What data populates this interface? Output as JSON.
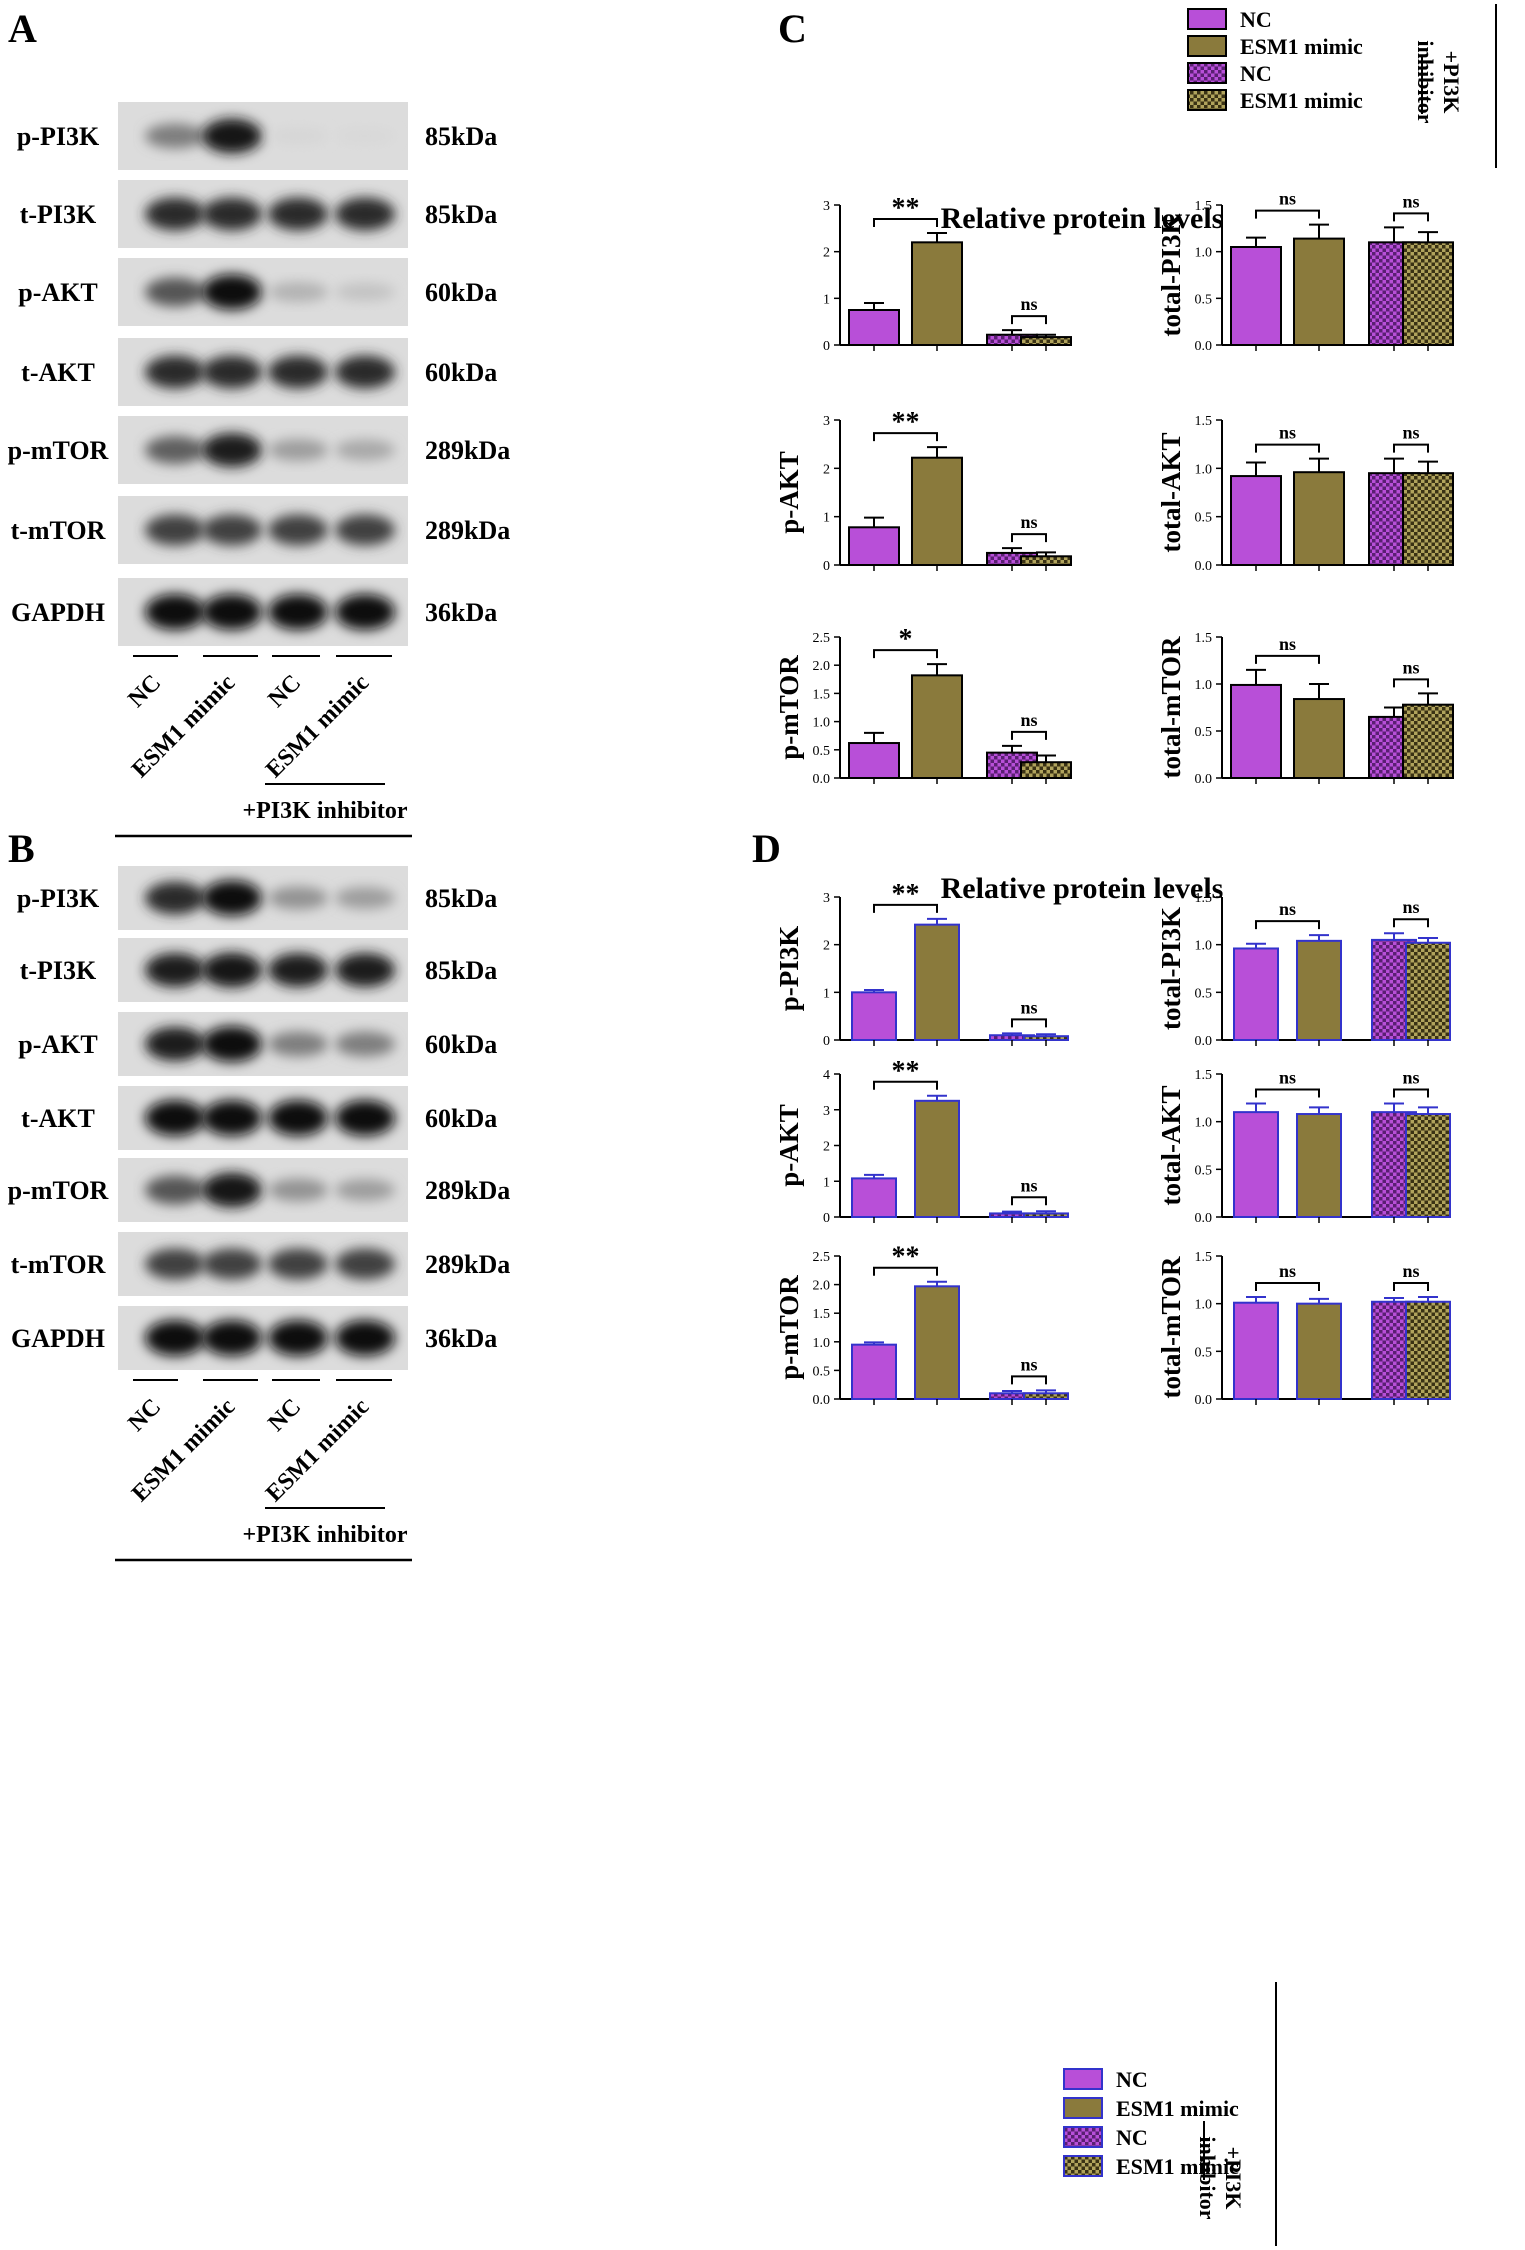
{
  "panels": {
    "A": "A",
    "B": "B",
    "C": "C",
    "D": "D"
  },
  "blot_A": {
    "rows": [
      {
        "label": "p-PI3K",
        "kda": "85kDa"
      },
      {
        "label": "t-PI3K",
        "kda": "85kDa"
      },
      {
        "label": "p-AKT",
        "kda": "60kDa"
      },
      {
        "label": "t-AKT",
        "kda": "60kDa"
      },
      {
        "label": "p-mTOR",
        "kda": "289kDa"
      },
      {
        "label": "t-mTOR",
        "kda": "289kDa"
      },
      {
        "label": "GAPDH",
        "kda": "36kDa"
      }
    ],
    "lanes": [
      "NC",
      "ESM1 mimic",
      "NC",
      "ESM1 mimic"
    ],
    "inhibitor_label": "+PI3K inhibitor",
    "band_intensity": [
      [
        0.45,
        0.95,
        0.03,
        0.02
      ],
      [
        0.85,
        0.85,
        0.85,
        0.85
      ],
      [
        0.65,
        0.98,
        0.2,
        0.12
      ],
      [
        0.85,
        0.85,
        0.85,
        0.85
      ],
      [
        0.6,
        0.9,
        0.3,
        0.25
      ],
      [
        0.75,
        0.75,
        0.75,
        0.75
      ],
      [
        1.0,
        1.0,
        1.0,
        1.0
      ]
    ]
  },
  "blot_B": {
    "rows": [
      {
        "label": "p-PI3K",
        "kda": "85kDa"
      },
      {
        "label": "t-PI3K",
        "kda": "85kDa"
      },
      {
        "label": "p-AKT",
        "kda": "60kDa"
      },
      {
        "label": "t-AKT",
        "kda": "60kDa"
      },
      {
        "label": "p-mTOR",
        "kda": "289kDa"
      },
      {
        "label": "t-mTOR",
        "kda": "289kDa"
      },
      {
        "label": "GAPDH",
        "kda": "36kDa"
      }
    ],
    "lanes": [
      "NC",
      "ESM1 mimic",
      "NC",
      "ESM1 mimic"
    ],
    "inhibitor_label": "+PI3K inhibitor",
    "band_intensity": [
      [
        0.85,
        0.98,
        0.35,
        0.3
      ],
      [
        0.9,
        0.95,
        0.9,
        0.9
      ],
      [
        0.9,
        1.0,
        0.45,
        0.45
      ],
      [
        1.0,
        1.0,
        1.0,
        1.0
      ],
      [
        0.65,
        0.95,
        0.35,
        0.3
      ],
      [
        0.75,
        0.75,
        0.75,
        0.75
      ],
      [
        1.0,
        1.0,
        1.0,
        1.0
      ]
    ]
  },
  "legend": {
    "items": [
      "NC",
      "ESM1 mimic",
      "NC",
      "ESM1 mimic"
    ],
    "group_label_line1": "+PI3K",
    "group_label_line2": "inhibitor"
  },
  "colors": {
    "nc": "#b84fd8",
    "esm1": "#8a7a3c",
    "border_c": "#000000",
    "border_d": "#3333cc"
  },
  "section_C_title": "Relative protein levels",
  "section_D_title": "Relative protein levels",
  "chart_data": [
    {
      "panel": "C",
      "type": "bar",
      "ylabel": "",
      "categories": [
        "NC",
        "ESM1 mimic",
        "NC +PI3K inhibitor",
        "ESM1 mimic +PI3K inhibitor"
      ],
      "values": [
        0.75,
        2.2,
        0.22,
        0.17
      ],
      "errors": [
        0.15,
        0.2,
        0.1,
        0.05
      ],
      "ylim": [
        0,
        3
      ],
      "ticks": [
        "0",
        "1",
        "2",
        "3"
      ],
      "sig": [
        "**",
        "ns"
      ]
    },
    {
      "panel": "C",
      "type": "bar",
      "ylabel": "total-PI3K",
      "categories": [
        "NC",
        "ESM1 mimic",
        "NC +PI3K inhibitor",
        "ESM1 mimic +PI3K inhibitor"
      ],
      "values": [
        1.05,
        1.14,
        1.1,
        1.1
      ],
      "errors": [
        0.1,
        0.15,
        0.16,
        0.11
      ],
      "ylim": [
        0,
        1.5
      ],
      "ticks": [
        "0.0",
        "0.5",
        "1.0",
        "1.5"
      ],
      "sig": [
        "ns",
        "ns"
      ]
    },
    {
      "panel": "C",
      "type": "bar",
      "ylabel": "p-AKT",
      "categories": [
        "NC",
        "ESM1 mimic",
        "NC +PI3K inhibitor",
        "ESM1 mimic +PI3K inhibitor"
      ],
      "values": [
        0.78,
        2.22,
        0.25,
        0.18
      ],
      "errors": [
        0.2,
        0.22,
        0.1,
        0.08
      ],
      "ylim": [
        0,
        3
      ],
      "ticks": [
        "0",
        "1",
        "2",
        "3"
      ],
      "sig": [
        "**",
        "ns"
      ]
    },
    {
      "panel": "C",
      "type": "bar",
      "ylabel": "total-AKT",
      "categories": [
        "NC",
        "ESM1 mimic",
        "NC +PI3K inhibitor",
        "ESM1 mimic +PI3K inhibitor"
      ],
      "values": [
        0.92,
        0.96,
        0.95,
        0.95
      ],
      "errors": [
        0.14,
        0.14,
        0.15,
        0.12
      ],
      "ylim": [
        0,
        1.5
      ],
      "ticks": [
        "0.0",
        "0.5",
        "1.0",
        "1.5"
      ],
      "sig": [
        "ns",
        "ns"
      ]
    },
    {
      "panel": "C",
      "type": "bar",
      "ylabel": "p-mTOR",
      "categories": [
        "NC",
        "ESM1 mimic",
        "NC +PI3K inhibitor",
        "ESM1 mimic +PI3K inhibitor"
      ],
      "values": [
        0.62,
        1.82,
        0.45,
        0.28
      ],
      "errors": [
        0.18,
        0.2,
        0.12,
        0.12
      ],
      "ylim": [
        0,
        2.5
      ],
      "ticks": [
        "0.0",
        "0.5",
        "1.0",
        "1.5",
        "2.0",
        "2.5"
      ],
      "sig": [
        "*",
        "ns"
      ]
    },
    {
      "panel": "C",
      "type": "bar",
      "ylabel": "total-mTOR",
      "categories": [
        "NC",
        "ESM1 mimic",
        "NC +PI3K inhibitor",
        "ESM1 mimic +PI3K inhibitor"
      ],
      "values": [
        0.99,
        0.84,
        0.65,
        0.78
      ],
      "errors": [
        0.16,
        0.16,
        0.1,
        0.12
      ],
      "ylim": [
        0,
        1.5
      ],
      "ticks": [
        "0.0",
        "0.5",
        "1.0",
        "1.5"
      ],
      "sig": [
        "ns",
        "ns"
      ]
    },
    {
      "panel": "D",
      "type": "bar",
      "ylabel": "p-PI3K",
      "categories": [
        "NC",
        "ESM1 mimic",
        "NC +PI3K inhibitor",
        "ESM1 mimic +PI3K inhibitor"
      ],
      "values": [
        1.0,
        2.42,
        0.1,
        0.08
      ],
      "errors": [
        0.05,
        0.12,
        0.04,
        0.04
      ],
      "ylim": [
        0,
        3
      ],
      "ticks": [
        "0",
        "1",
        "2",
        "3"
      ],
      "sig": [
        "**",
        "ns"
      ]
    },
    {
      "panel": "D",
      "type": "bar",
      "ylabel": "total-PI3K",
      "categories": [
        "NC",
        "ESM1 mimic",
        "NC +PI3K inhibitor",
        "ESM1 mimic +PI3K inhibitor"
      ],
      "values": [
        0.96,
        1.04,
        1.05,
        1.02
      ],
      "errors": [
        0.05,
        0.06,
        0.07,
        0.05
      ],
      "ylim": [
        0,
        1.5
      ],
      "ticks": [
        "0.0",
        "0.5",
        "1.0",
        "1.5"
      ],
      "sig": [
        "ns",
        "ns"
      ]
    },
    {
      "panel": "D",
      "type": "bar",
      "ylabel": "p-AKT",
      "categories": [
        "NC",
        "ESM1 mimic",
        "NC +PI3K inhibitor",
        "ESM1 mimic +PI3K inhibitor"
      ],
      "values": [
        1.08,
        3.25,
        0.1,
        0.1
      ],
      "errors": [
        0.1,
        0.14,
        0.05,
        0.06
      ],
      "ylim": [
        0,
        4
      ],
      "ticks": [
        "0",
        "1",
        "2",
        "3",
        "4"
      ],
      "sig": [
        "**",
        "ns"
      ]
    },
    {
      "panel": "D",
      "type": "bar",
      "ylabel": "total-AKT",
      "categories": [
        "NC",
        "ESM1 mimic",
        "NC +PI3K inhibitor",
        "ESM1 mimic +PI3K inhibitor"
      ],
      "values": [
        1.1,
        1.08,
        1.1,
        1.08
      ],
      "errors": [
        0.09,
        0.07,
        0.09,
        0.07
      ],
      "ylim": [
        0,
        1.5
      ],
      "ticks": [
        "0.0",
        "0.5",
        "1.0",
        "1.5"
      ],
      "sig": [
        "ns",
        "ns"
      ]
    },
    {
      "panel": "D",
      "type": "bar",
      "ylabel": "p-mTOR",
      "categories": [
        "NC",
        "ESM1 mimic",
        "NC +PI3K inhibitor",
        "ESM1 mimic +PI3K inhibitor"
      ],
      "values": [
        0.95,
        1.97,
        0.1,
        0.1
      ],
      "errors": [
        0.04,
        0.08,
        0.04,
        0.05
      ],
      "ylim": [
        0,
        2.5
      ],
      "ticks": [
        "0.0",
        "0.5",
        "1.0",
        "1.5",
        "2.0",
        "2.5"
      ],
      "sig": [
        "**",
        "ns"
      ]
    },
    {
      "panel": "D",
      "type": "bar",
      "ylabel": "total-mTOR",
      "categories": [
        "NC",
        "ESM1 mimic",
        "NC +PI3K inhibitor",
        "ESM1 mimic +PI3K inhibitor"
      ],
      "values": [
        1.01,
        1.0,
        1.02,
        1.02
      ],
      "errors": [
        0.06,
        0.05,
        0.04,
        0.05
      ],
      "ylim": [
        0,
        1.5
      ],
      "ticks": [
        "0.0",
        "0.5",
        "1.0",
        "1.5"
      ],
      "sig": [
        "ns",
        "ns"
      ]
    }
  ]
}
